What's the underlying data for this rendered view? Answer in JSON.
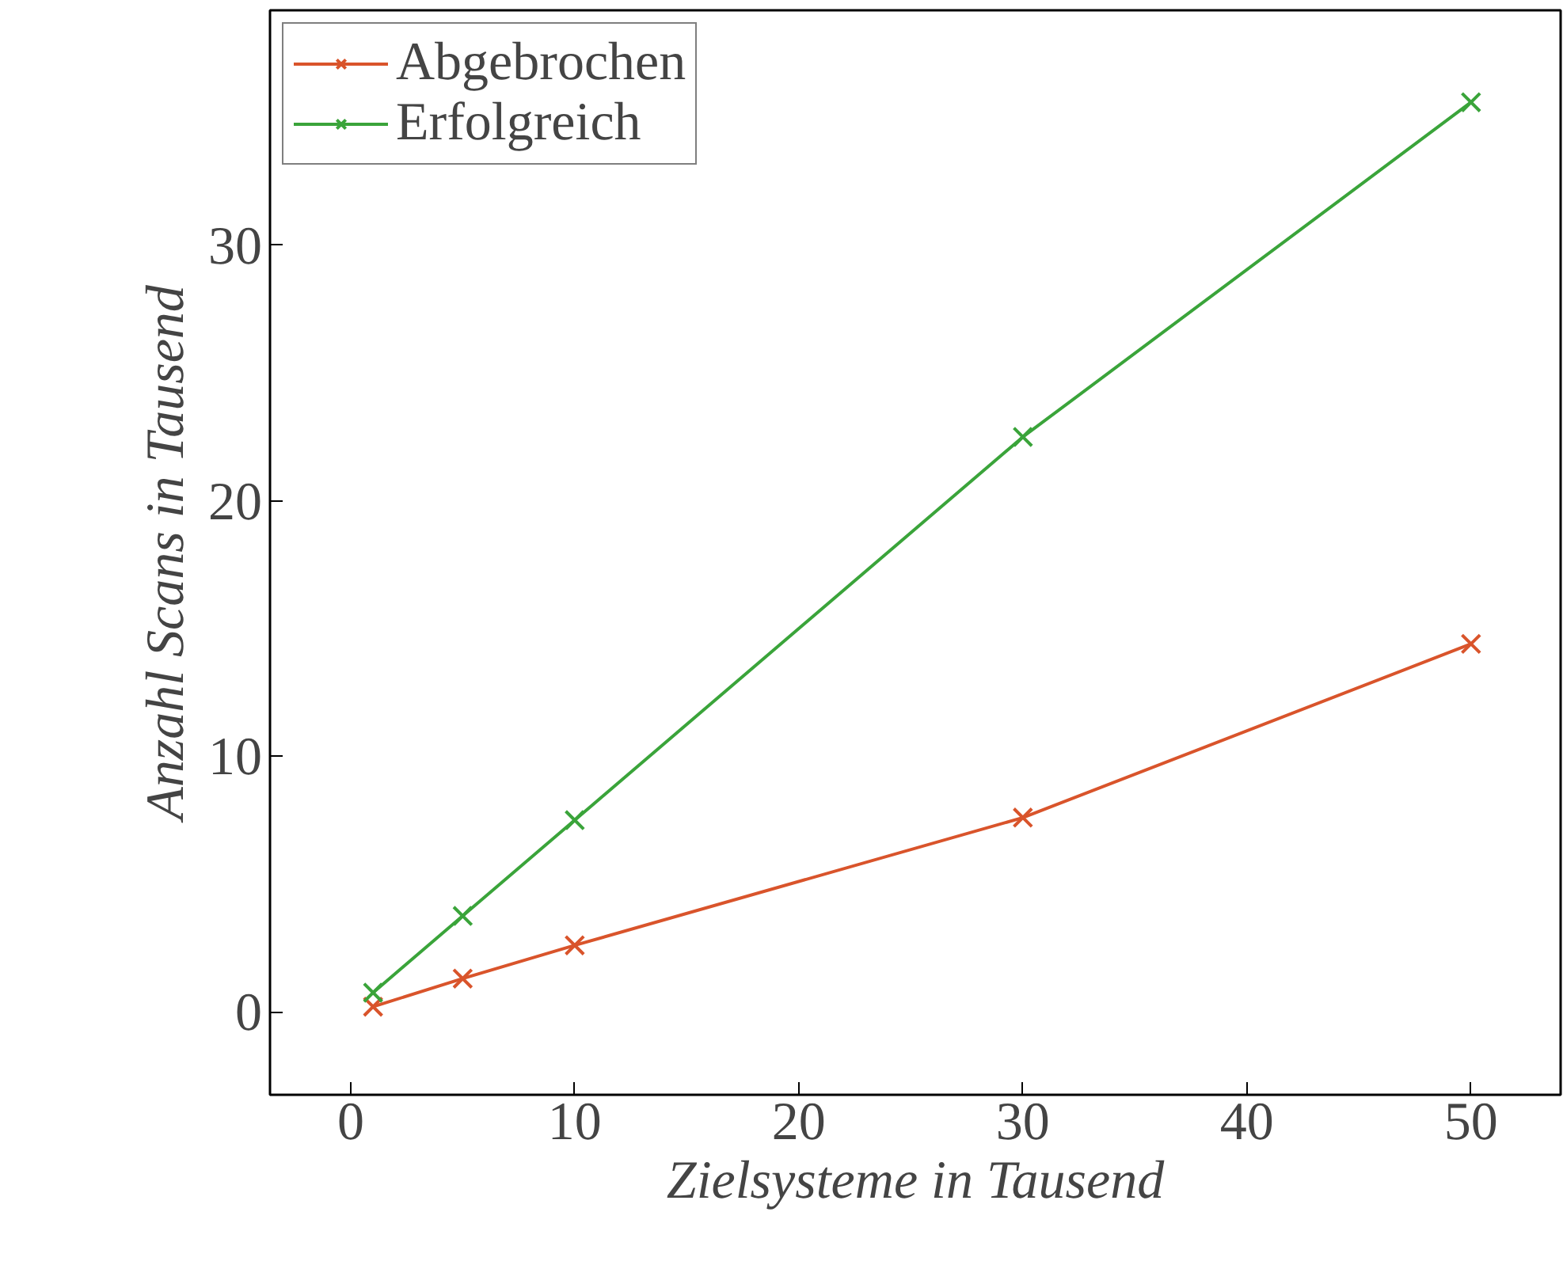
{
  "chart_data": {
    "type": "line",
    "xlabel": "Zielsysteme in Tausend",
    "ylabel": "Anzahl Scans in Tausend",
    "x": [
      1,
      5,
      10,
      30,
      50
    ],
    "series": [
      {
        "name": "Abgebrochen",
        "color": "#d9542b",
        "values": [
          0.2,
          1.3,
          2.6,
          7.6,
          14.4
        ]
      },
      {
        "name": "Erfolgreich",
        "color": "#3aa43a",
        "values": [
          0.75,
          3.75,
          7.5,
          22.5,
          35.6
        ]
      }
    ],
    "xlim": [
      -3.6,
      54
    ],
    "ylim": [
      -3.25,
      39.2
    ],
    "xticks": [
      0,
      10,
      20,
      30,
      40,
      50
    ],
    "yticks": [
      0,
      10,
      20,
      30
    ],
    "marker": "cross",
    "line_style": "solid",
    "legend": "top left",
    "grid": false
  }
}
